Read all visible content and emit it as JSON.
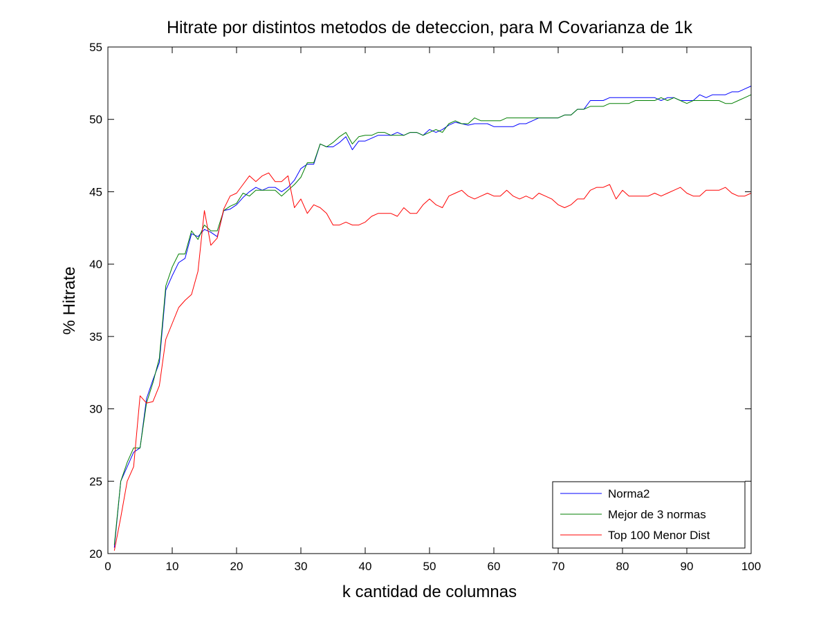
{
  "chart_data": {
    "type": "line",
    "title": "Hitrate por distintos metodos de deteccion, para M Covarianza de 1k",
    "xlabel": "k cantidad de columnas",
    "ylabel": "% Hitrate",
    "xlim": [
      0,
      100
    ],
    "ylim": [
      20,
      55
    ],
    "xticks": [
      0,
      10,
      20,
      30,
      40,
      50,
      60,
      70,
      80,
      90,
      100
    ],
    "yticks": [
      20,
      25,
      30,
      35,
      40,
      45,
      50,
      55
    ],
    "grid": false,
    "legend_position": "bottom-right",
    "series": [
      {
        "name": "Norma2",
        "color": "#0000ff",
        "x": [
          1,
          2,
          3,
          4,
          5,
          6,
          7,
          8,
          9,
          10,
          11,
          12,
          13,
          14,
          15,
          16,
          17,
          18,
          19,
          20,
          21,
          22,
          23,
          24,
          25,
          26,
          27,
          28,
          29,
          30,
          31,
          32,
          33,
          34,
          35,
          36,
          37,
          38,
          39,
          40,
          41,
          42,
          43,
          44,
          45,
          46,
          47,
          48,
          49,
          50,
          51,
          52,
          53,
          54,
          55,
          56,
          57,
          58,
          59,
          60,
          61,
          62,
          63,
          64,
          65,
          66,
          67,
          68,
          69,
          70,
          71,
          72,
          73,
          74,
          75,
          76,
          77,
          78,
          79,
          80,
          81,
          82,
          83,
          84,
          85,
          86,
          87,
          88,
          89,
          90,
          91,
          92,
          93,
          94,
          95,
          96,
          97,
          98,
          99,
          100
        ],
        "values": [
          20.4,
          25.0,
          26.0,
          27.0,
          27.3,
          30.7,
          32.0,
          33.2,
          38.2,
          39.2,
          40.1,
          40.4,
          42.1,
          41.9,
          42.4,
          42.2,
          41.9,
          43.7,
          43.8,
          44.1,
          44.6,
          45.0,
          45.3,
          45.1,
          45.3,
          45.3,
          45.0,
          45.3,
          45.8,
          46.6,
          46.9,
          46.9,
          48.3,
          48.1,
          48.1,
          48.4,
          48.8,
          47.9,
          48.5,
          48.5,
          48.7,
          48.9,
          48.9,
          48.9,
          49.1,
          48.9,
          49.1,
          49.1,
          48.9,
          49.3,
          49.1,
          49.3,
          49.6,
          49.8,
          49.7,
          49.6,
          49.7,
          49.7,
          49.7,
          49.5,
          49.5,
          49.5,
          49.5,
          49.7,
          49.7,
          49.9,
          50.1,
          50.1,
          50.1,
          50.1,
          50.3,
          50.3,
          50.7,
          50.7,
          51.3,
          51.3,
          51.3,
          51.5,
          51.5,
          51.5,
          51.5,
          51.5,
          51.5,
          51.5,
          51.5,
          51.3,
          51.5,
          51.5,
          51.3,
          51.3,
          51.3,
          51.7,
          51.5,
          51.7,
          51.7,
          51.7,
          51.9,
          51.9,
          52.1,
          52.3
        ]
      },
      {
        "name": "Mejor de 3 normas",
        "color": "#007f00",
        "x": [
          1,
          2,
          3,
          4,
          5,
          6,
          7,
          8,
          9,
          10,
          11,
          12,
          13,
          14,
          15,
          16,
          17,
          18,
          19,
          20,
          21,
          22,
          23,
          24,
          25,
          26,
          27,
          28,
          29,
          30,
          31,
          32,
          33,
          34,
          35,
          36,
          37,
          38,
          39,
          40,
          41,
          42,
          43,
          44,
          45,
          46,
          47,
          48,
          49,
          50,
          51,
          52,
          53,
          54,
          55,
          56,
          57,
          58,
          59,
          60,
          61,
          62,
          63,
          64,
          65,
          66,
          67,
          68,
          69,
          70,
          71,
          72,
          73,
          74,
          75,
          76,
          77,
          78,
          79,
          80,
          81,
          82,
          83,
          84,
          85,
          86,
          87,
          88,
          89,
          90,
          91,
          92,
          93,
          94,
          95,
          96,
          97,
          98,
          99,
          100
        ],
        "values": [
          20.6,
          25.0,
          26.3,
          27.3,
          27.3,
          30.4,
          31.8,
          33.5,
          38.5,
          39.8,
          40.7,
          40.7,
          42.3,
          41.7,
          42.7,
          42.3,
          42.3,
          43.7,
          44.0,
          44.2,
          44.9,
          44.7,
          45.1,
          45.1,
          45.1,
          45.1,
          44.7,
          45.1,
          45.5,
          46.0,
          47.0,
          47.0,
          48.3,
          48.1,
          48.4,
          48.8,
          49.1,
          48.3,
          48.8,
          48.9,
          48.9,
          49.1,
          49.1,
          48.9,
          48.9,
          48.9,
          49.1,
          49.1,
          48.9,
          49.1,
          49.3,
          49.1,
          49.7,
          49.9,
          49.7,
          49.7,
          50.1,
          49.9,
          49.9,
          49.9,
          49.9,
          50.1,
          50.1,
          50.1,
          50.1,
          50.1,
          50.1,
          50.1,
          50.1,
          50.1,
          50.3,
          50.3,
          50.7,
          50.7,
          50.9,
          50.9,
          50.9,
          51.1,
          51.1,
          51.1,
          51.1,
          51.3,
          51.3,
          51.3,
          51.3,
          51.5,
          51.3,
          51.5,
          51.3,
          51.1,
          51.3,
          51.3,
          51.3,
          51.3,
          51.3,
          51.1,
          51.1,
          51.3,
          51.5,
          51.7
        ]
      },
      {
        "name": "Top 100 Menor Dist",
        "color": "#ff0000",
        "x": [
          1,
          2,
          3,
          4,
          5,
          6,
          7,
          8,
          9,
          10,
          11,
          12,
          13,
          14,
          15,
          16,
          17,
          18,
          19,
          20,
          21,
          22,
          23,
          24,
          25,
          26,
          27,
          28,
          29,
          30,
          31,
          32,
          33,
          34,
          35,
          36,
          37,
          38,
          39,
          40,
          41,
          42,
          43,
          44,
          45,
          46,
          47,
          48,
          49,
          50,
          51,
          52,
          53,
          54,
          55,
          56,
          57,
          58,
          59,
          60,
          61,
          62,
          63,
          64,
          65,
          66,
          67,
          68,
          69,
          70,
          71,
          72,
          73,
          74,
          75,
          76,
          77,
          78,
          79,
          80,
          81,
          82,
          83,
          84,
          85,
          86,
          87,
          88,
          89,
          90,
          91,
          92,
          93,
          94,
          95,
          96,
          97,
          98,
          99,
          100
        ],
        "values": [
          20.2,
          22.5,
          25.0,
          26.0,
          30.9,
          30.4,
          30.5,
          31.6,
          34.8,
          35.9,
          37.0,
          37.5,
          37.9,
          39.5,
          43.7,
          41.3,
          41.8,
          43.8,
          44.7,
          44.9,
          45.5,
          46.1,
          45.7,
          46.1,
          46.3,
          45.7,
          45.7,
          46.1,
          43.9,
          44.5,
          43.5,
          44.1,
          43.9,
          43.5,
          42.7,
          42.7,
          42.9,
          42.7,
          42.7,
          42.9,
          43.3,
          43.5,
          43.5,
          43.5,
          43.3,
          43.9,
          43.5,
          43.5,
          44.1,
          44.5,
          44.1,
          43.9,
          44.7,
          44.9,
          45.1,
          44.7,
          44.5,
          44.7,
          44.9,
          44.7,
          44.7,
          45.1,
          44.7,
          44.5,
          44.7,
          44.5,
          44.9,
          44.7,
          44.5,
          44.1,
          43.9,
          44.1,
          44.5,
          44.5,
          45.1,
          45.3,
          45.3,
          45.5,
          44.5,
          45.1,
          44.7,
          44.7,
          44.7,
          44.7,
          44.9,
          44.7,
          44.9,
          45.1,
          45.3,
          44.9,
          44.7,
          44.7,
          45.1,
          45.1,
          45.1,
          45.3,
          44.9,
          44.7,
          44.7,
          44.9
        ]
      }
    ]
  }
}
